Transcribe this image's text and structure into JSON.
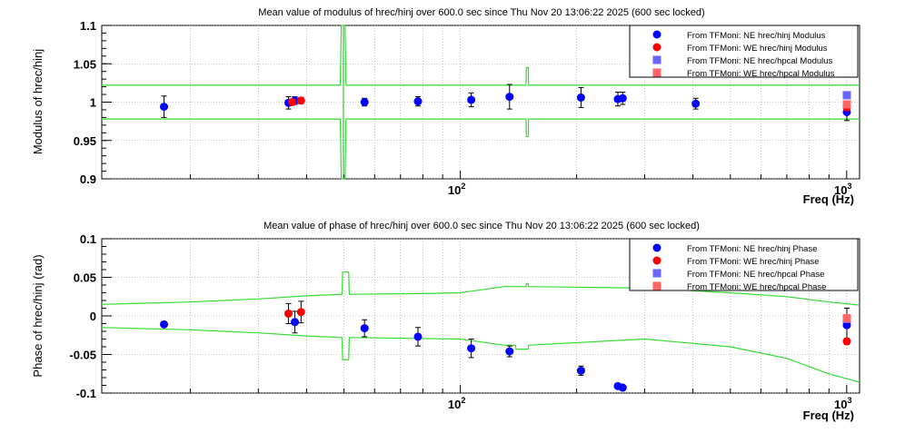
{
  "chart_data": [
    {
      "type": "scatter",
      "title": "Mean value of modulus of hrec/hinj over 600.0 sec since Thu Nov 20 13:06:22 2025 (600 sec locked)",
      "xlabel": "Freq (Hz)",
      "ylabel": "Modulus of hrec/hinj",
      "xscale": "log",
      "xlim": [
        11.8,
        1080
      ],
      "ylim": [
        0.9,
        1.1
      ],
      "y_ticks": [
        0.9,
        0.95,
        1,
        1.05,
        1.1
      ],
      "y_tick_labels": [
        "0.9",
        "0.95",
        "1",
        "1.05",
        "1.1"
      ],
      "x_tick_labels": [
        "10^2",
        "10^3"
      ],
      "grid": true,
      "legend_position": "top-right",
      "series": [
        {
          "name": "From TFMoni: NE hrec/hinj Modulus",
          "color": "#0000ff",
          "marker": "circle",
          "x": [
            17.1,
            35.9,
            37.3,
            56.5,
            77.7,
            106.7,
            134.1,
            205.3,
            255.7,
            263.2,
            406.7,
            1001
          ],
          "y": [
            0.994,
            0.999,
            1.002,
            1.0,
            1.001,
            1.003,
            1.007,
            1.006,
            1.004,
            1.005,
            0.998,
            0.987
          ],
          "err": [
            0.014,
            0.008,
            0.005,
            0.005,
            0.006,
            0.009,
            0.016,
            0.013,
            0.009,
            0.008,
            0.007,
            0.011
          ]
        },
        {
          "name": "From TFMoni: WE hrec/hinj Modulus",
          "color": "#ff0000",
          "marker": "circle",
          "x": [
            36.7,
            38.7,
            1001
          ],
          "y": [
            1.0,
            1.002,
            0.993
          ],
          "err": [
            0.004,
            0.004,
            0.004
          ]
        },
        {
          "name": "From TFMoni: NE hrec/hpcal Modulus",
          "color": "#6666ff",
          "marker": "square",
          "x": [
            1001
          ],
          "y": [
            1.009
          ],
          "err": [
            0
          ]
        },
        {
          "name": "From TFMoni: WE hrec/hpcal Modulus",
          "color": "#ff6666",
          "marker": "square",
          "x": [
            1001
          ],
          "y": [
            0.997
          ],
          "err": [
            0
          ]
        }
      ]
    },
    {
      "type": "scatter",
      "title": "Mean value of phase of hrec/hinj over 600.0 sec since Thu Nov 20 13:06:22 2025 (600 sec locked)",
      "xlabel": "Freq (Hz)",
      "ylabel": "Phase of hrec/hinj (rad)",
      "xscale": "log",
      "xlim": [
        11.8,
        1080
      ],
      "ylim": [
        -0.1,
        0.1
      ],
      "y_ticks": [
        -0.1,
        -0.05,
        0,
        0.05,
        0.1
      ],
      "y_tick_labels": [
        "-0.1",
        "-0.05",
        "0",
        "0.05",
        "0.1"
      ],
      "x_tick_labels": [
        "10^2",
        "10^3"
      ],
      "grid": true,
      "legend_position": "top-right",
      "series": [
        {
          "name": "From TFMoni: NE hrec/hinj Phase",
          "color": "#0000ff",
          "marker": "circle",
          "x": [
            17.1,
            37.3,
            56.5,
            77.7,
            106.7,
            134.1,
            205.3,
            255.7,
            263.2,
            1001
          ],
          "y": [
            -0.011,
            -0.008,
            -0.016,
            -0.027,
            -0.042,
            -0.046,
            -0.071,
            -0.091,
            -0.093,
            -0.012
          ],
          "err": [
            0.003,
            0.014,
            0.011,
            0.012,
            0.012,
            0.007,
            0.006,
            0.003,
            0.003,
            0.022
          ]
        },
        {
          "name": "From TFMoni: WE hrec/hinj Phase",
          "color": "#ff0000",
          "marker": "circle",
          "x": [
            35.9,
            38.7,
            1001
          ],
          "y": [
            0.003,
            0.005,
            -0.033
          ],
          "err": [
            0.013,
            0.014,
            0.004
          ]
        },
        {
          "name": "From TFMoni: NE hrec/hpcal Phase",
          "color": "#6666ff",
          "marker": "square",
          "x": [
            1001
          ],
          "y": [
            -0.004
          ],
          "err": [
            0
          ]
        },
        {
          "name": "From TFMoni: WE hrec/hpcal Phase",
          "color": "#ff6666",
          "marker": "square",
          "x": [
            1001
          ],
          "y": [
            -0.003
          ],
          "err": [
            0
          ]
        }
      ]
    }
  ],
  "tolerance_band_color": "#33dd33",
  "x_label_text": "Freq (Hz)"
}
